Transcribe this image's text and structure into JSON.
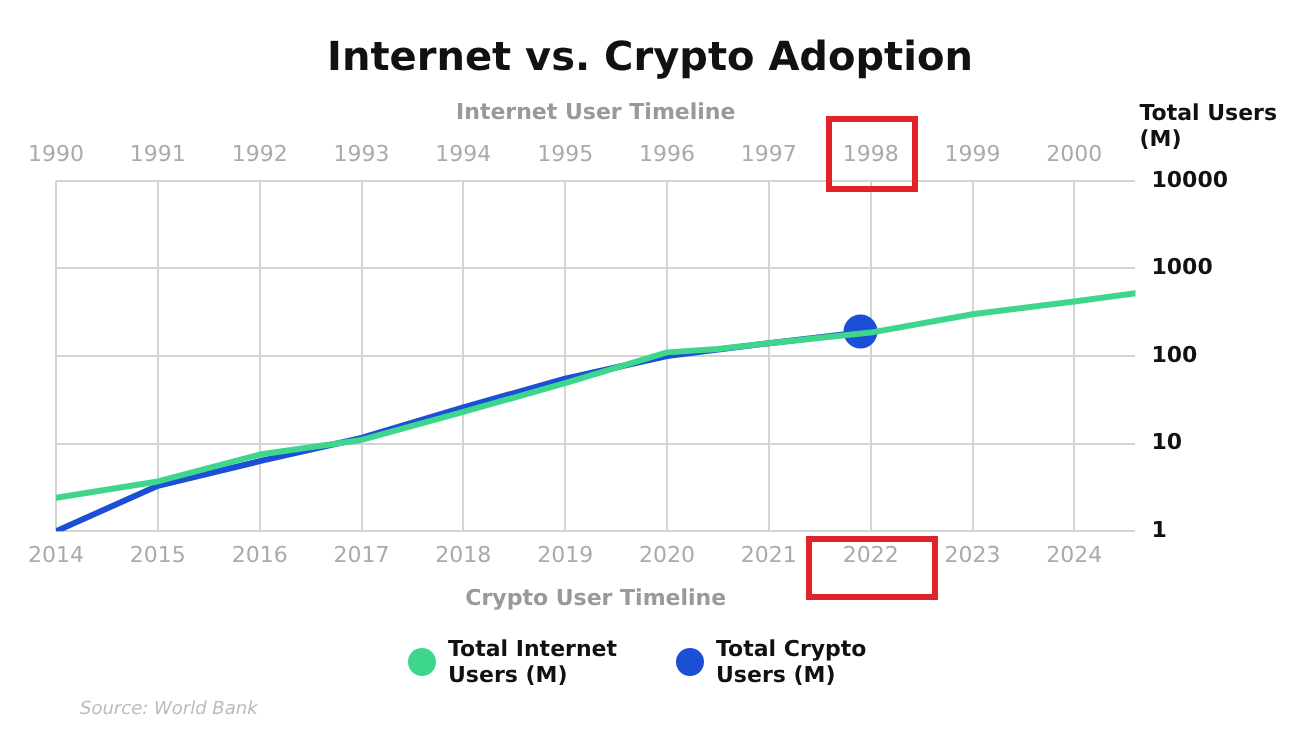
{
  "chart_data": {
    "type": "line",
    "title": "Internet vs. Crypto Adoption",
    "x2label": "Internet User Timeline",
    "xlabel": "Crypto User Timeline",
    "ylabel": "Total Users (M)",
    "xlim": [
      2014,
      2024.6
    ],
    "xticks": [
      2014,
      2015,
      2016,
      2017,
      2018,
      2019,
      2020,
      2021,
      2022,
      2023,
      2024
    ],
    "x2lim": [
      1990,
      2000.6
    ],
    "x2ticks": [
      1990,
      1991,
      1992,
      1993,
      1994,
      1995,
      1996,
      1997,
      1998,
      1999,
      2000
    ],
    "ylim": [
      1,
      10000
    ],
    "yticks": [
      1,
      10,
      100,
      1000,
      10000
    ],
    "log": "y",
    "grid": true,
    "legend": "bottom",
    "marker": "none",
    "series": [
      {
        "name": "Total Internet Users (M)",
        "color": "#3dd68c",
        "axis": "x2",
        "x": [
          1990,
          1991,
          1992,
          1993,
          1994,
          1995,
          1996,
          1996.5,
          1997,
          1998,
          1999,
          2000,
          2000.6
        ],
        "values": [
          2.4,
          3.7,
          7.5,
          11,
          23,
          49,
          110,
          120,
          140,
          185,
          300,
          420,
          520
        ]
      },
      {
        "name": "Total Crypto Users (M)",
        "color": "#1a4fd6",
        "x": [
          2014,
          2015,
          2016,
          2017,
          2018,
          2019,
          2020,
          2021,
          2021.9
        ],
        "values": [
          1,
          3.3,
          6.3,
          11.6,
          26,
          55,
          100,
          140,
          185
        ]
      },
      {
        "type": "scatter",
        "marker": "circle",
        "color": "#1a4fd6",
        "x": [
          2021.9
        ],
        "values": [
          190
        ]
      }
    ],
    "annotations": [
      "Source: World Bank"
    ]
  }
}
